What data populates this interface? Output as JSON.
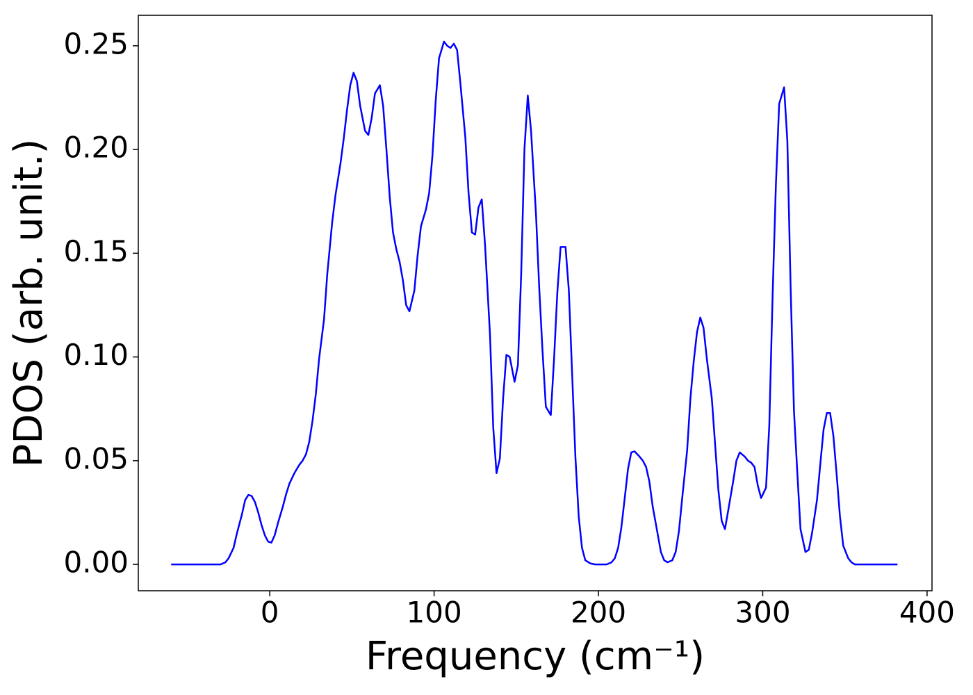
{
  "chart_data": {
    "type": "line",
    "xlabel": "Frequency (cm⁻¹)",
    "ylabel": "PDOS (arb. unit.)",
    "xlim": [
      -80,
      403
    ],
    "ylim": [
      -0.0127,
      0.2647
    ],
    "xticks": [
      0,
      100,
      200,
      300,
      400
    ],
    "yticks": [
      {
        "value": 0,
        "label": "0.00"
      },
      {
        "value": 0.05,
        "label": "0.05"
      },
      {
        "value": 0.1,
        "label": "0.10"
      },
      {
        "value": 0.15,
        "label": "0.15"
      },
      {
        "value": 0.2,
        "label": "0.20"
      },
      {
        "value": 0.25,
        "label": "0.25"
      }
    ],
    "grid": false,
    "series": [
      {
        "color": "#0000ff",
        "x": [
          -60,
          -30,
          -27,
          -25,
          -22,
          -20,
          -17,
          -15,
          -13,
          -11,
          -9,
          -7,
          -5,
          -3,
          -1,
          1,
          3,
          5,
          8,
          10,
          12,
          15,
          18,
          20,
          22,
          24,
          26,
          28,
          30,
          33,
          35,
          38,
          40,
          43,
          45,
          47,
          49,
          51,
          53,
          55,
          58,
          60,
          62,
          64,
          67,
          69,
          71,
          73,
          75,
          77,
          79,
          81,
          83,
          85,
          88,
          90,
          92,
          95,
          97,
          99,
          101,
          103,
          106,
          108,
          110,
          112,
          114,
          116,
          119,
          121,
          123,
          125,
          127,
          129,
          131,
          134,
          136,
          138,
          140,
          142,
          144,
          146,
          149,
          151,
          153,
          155,
          157,
          159,
          162,
          164,
          166,
          168,
          171,
          173,
          175,
          177,
          180,
          182,
          184,
          186,
          188,
          190,
          192,
          195,
          198,
          205,
          208,
          210,
          212,
          214,
          216,
          218,
          220,
          222,
          225,
          227,
          229,
          231,
          233,
          236,
          238,
          240,
          242,
          245,
          247,
          249,
          251,
          254,
          256,
          258,
          260,
          262,
          264,
          266,
          269,
          271,
          273,
          275,
          277,
          279,
          282,
          284,
          286,
          289,
          291,
          293,
          295,
          297,
          299,
          302,
          304,
          306,
          308,
          310,
          313,
          315,
          317,
          319,
          321,
          323,
          326,
          328,
          330,
          333,
          335,
          337,
          339,
          341,
          343,
          345,
          347,
          349,
          352,
          354,
          356,
          382
        ],
        "values": [
          0,
          0,
          0.001,
          0.003,
          0.008,
          0.015,
          0.024,
          0.031,
          0.0335,
          0.033,
          0.03,
          0.025,
          0.019,
          0.014,
          0.011,
          0.0105,
          0.014,
          0.02,
          0.028,
          0.034,
          0.039,
          0.044,
          0.048,
          0.05,
          0.053,
          0.059,
          0.069,
          0.082,
          0.099,
          0.118,
          0.14,
          0.165,
          0.178,
          0.193,
          0.205,
          0.219,
          0.231,
          0.237,
          0.233,
          0.221,
          0.209,
          0.207,
          0.215,
          0.227,
          0.231,
          0.221,
          0.2,
          0.177,
          0.16,
          0.152,
          0.146,
          0.137,
          0.125,
          0.122,
          0.132,
          0.149,
          0.163,
          0.171,
          0.179,
          0.197,
          0.224,
          0.244,
          0.252,
          0.25,
          0.249,
          0.251,
          0.248,
          0.232,
          0.206,
          0.179,
          0.16,
          0.159,
          0.172,
          0.176,
          0.154,
          0.111,
          0.066,
          0.044,
          0.051,
          0.08,
          0.101,
          0.1,
          0.088,
          0.096,
          0.14,
          0.2,
          0.226,
          0.209,
          0.169,
          0.133,
          0.103,
          0.076,
          0.072,
          0.099,
          0.131,
          0.153,
          0.153,
          0.132,
          0.092,
          0.052,
          0.023,
          0.008,
          0.002,
          0.0005,
          0,
          0,
          0.001,
          0.003,
          0.008,
          0.018,
          0.032,
          0.046,
          0.054,
          0.0545,
          0.052,
          0.05,
          0.047,
          0.04,
          0.028,
          0.015,
          0.006,
          0.002,
          0.001,
          0.002,
          0.006,
          0.016,
          0.032,
          0.055,
          0.08,
          0.098,
          0.112,
          0.119,
          0.114,
          0.099,
          0.08,
          0.058,
          0.036,
          0.021,
          0.017,
          0.026,
          0.04,
          0.05,
          0.054,
          0.052,
          0.05,
          0.049,
          0.047,
          0.038,
          0.032,
          0.037,
          0.067,
          0.13,
          0.183,
          0.222,
          0.23,
          0.204,
          0.132,
          0.074,
          0.045,
          0.017,
          0.006,
          0.007,
          0.015,
          0.031,
          0.048,
          0.065,
          0.073,
          0.073,
          0.062,
          0.043,
          0.023,
          0.009,
          0.003,
          0.001,
          0,
          0
        ]
      }
    ]
  }
}
